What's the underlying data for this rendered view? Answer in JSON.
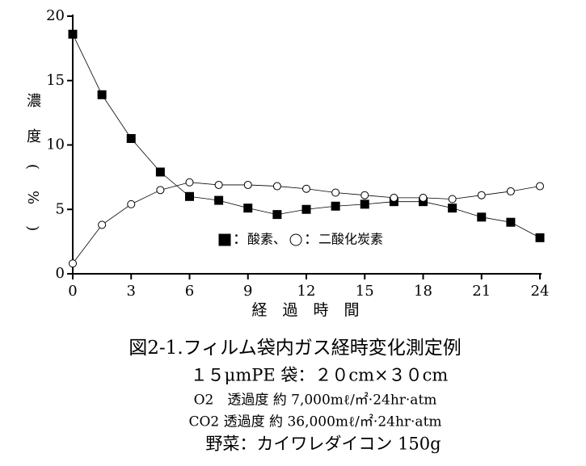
{
  "chart_data": {
    "type": "line",
    "x_label": "経　過　時　間",
    "y_label": "濃度(%)",
    "x": [
      0,
      1.5,
      3,
      4.5,
      6,
      7.5,
      9,
      10.5,
      12,
      13.5,
      15,
      16.5,
      18,
      19.5,
      21,
      22.5,
      24
    ],
    "series": [
      {
        "name": "酸素",
        "color": "#000000",
        "marker": "square",
        "filled": true,
        "values": [
          18.6,
          13.9,
          10.5,
          7.9,
          6.0,
          5.7,
          5.1,
          4.6,
          5.0,
          5.25,
          5.4,
          5.6,
          5.6,
          5.1,
          4.4,
          4.0,
          2.8
        ]
      },
      {
        "name": "二酸化炭素",
        "color": "#000000",
        "marker": "circle",
        "filled": false,
        "values": [
          0.8,
          3.8,
          5.4,
          6.5,
          7.1,
          6.9,
          6.9,
          6.8,
          6.6,
          6.3,
          6.1,
          5.9,
          5.9,
          5.8,
          6.1,
          6.4,
          6.8
        ]
      }
    ],
    "legend_separator": "：",
    "legend_joiner": "、",
    "xlim": [
      0,
      24
    ],
    "xticks": [
      0,
      3,
      6,
      9,
      12,
      15,
      18,
      21,
      24
    ],
    "ylim": [
      0,
      20
    ],
    "yticks": [
      0,
      5,
      10,
      15,
      20
    ],
    "grid": false,
    "caption": "図2-1.フィルム袋内ガス経時変化測定例",
    "notes": [
      "１５μmPE 袋：２０cm×３０cm",
      "O2　透過度 約 7,000mℓ/㎡·24hr·atm",
      "CO2 透過度 約 36,000mℓ/㎡·24hr·atm",
      "野菜：カイワレダイコン 150g"
    ]
  }
}
